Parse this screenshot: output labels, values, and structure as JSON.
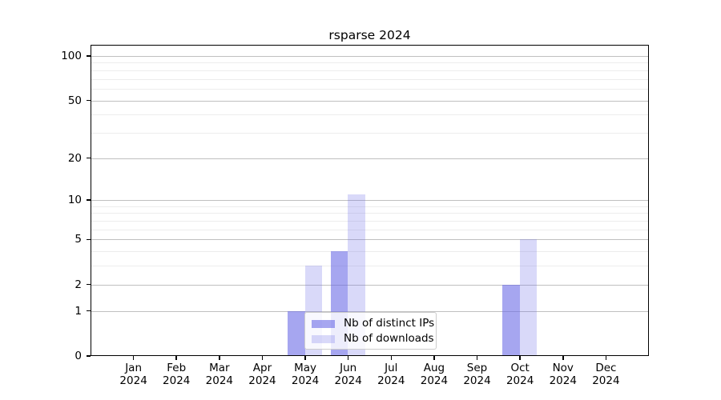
{
  "chart_data": {
    "type": "bar",
    "title": "rsparse 2024",
    "xlabel": "",
    "ylabel": "",
    "year": "2024",
    "months": [
      "Jan",
      "Feb",
      "Mar",
      "Apr",
      "May",
      "Jun",
      "Jul",
      "Aug",
      "Sep",
      "Oct",
      "Nov",
      "Dec"
    ],
    "series": [
      {
        "name": "Nb of distinct IPs",
        "color": "rgba(102,102,230,0.58)",
        "values": [
          0,
          0,
          0,
          0,
          1,
          4,
          0,
          0,
          0,
          2,
          0,
          0
        ]
      },
      {
        "name": "Nb of downloads",
        "color": "rgba(102,102,230,0.25)",
        "values": [
          0,
          0,
          0,
          0,
          3,
          11,
          0,
          0,
          0,
          5,
          0,
          0
        ]
      }
    ],
    "yscale": "log1p",
    "ylim": [
      0,
      119
    ],
    "yticks": [
      0,
      1,
      2,
      5,
      10,
      20,
      50,
      100
    ],
    "minor_gridlines": [
      3,
      4,
      6,
      7,
      8,
      9,
      30,
      40,
      60,
      70,
      80,
      90
    ],
    "grid": true,
    "legend_position": "lower-center"
  },
  "colors": {
    "background": "#ffffff",
    "axis": "#000000",
    "major_grid": "#c0c0c0",
    "minor_grid": "#ececec",
    "legend_border": "#cccccc",
    "legend_background": "rgba(255,255,255,0.8)"
  }
}
